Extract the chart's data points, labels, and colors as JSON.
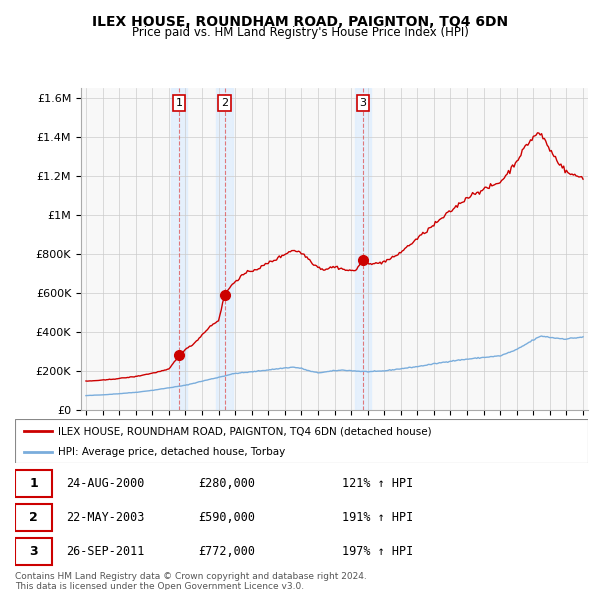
{
  "title": "ILEX HOUSE, ROUNDHAM ROAD, PAIGNTON, TQ4 6DN",
  "subtitle": "Price paid vs. HM Land Registry's House Price Index (HPI)",
  "legend_house": "ILEX HOUSE, ROUNDHAM ROAD, PAIGNTON, TQ4 6DN (detached house)",
  "legend_hpi": "HPI: Average price, detached house, Torbay",
  "footer1": "Contains HM Land Registry data © Crown copyright and database right 2024.",
  "footer2": "This data is licensed under the Open Government Licence v3.0.",
  "sales": [
    {
      "label": "1",
      "date": "24-AUG-2000",
      "price": 280000,
      "pct": "121%",
      "year": 2000.625
    },
    {
      "label": "2",
      "date": "22-MAY-2003",
      "price": 590000,
      "pct": "191%",
      "year": 2003.375
    },
    {
      "label": "3",
      "date": "26-SEP-2011",
      "price": 772000,
      "pct": "197%",
      "year": 2011.708
    }
  ],
  "ylim": [
    0,
    1650000
  ],
  "xlim": [
    1994.7,
    2025.3
  ],
  "house_color": "#cc0000",
  "hpi_color": "#7aaddc",
  "grid_color": "#cccccc",
  "sale_marker_color": "#cc0000",
  "shade_color": "#ddeeff",
  "background_color": "#ffffff"
}
